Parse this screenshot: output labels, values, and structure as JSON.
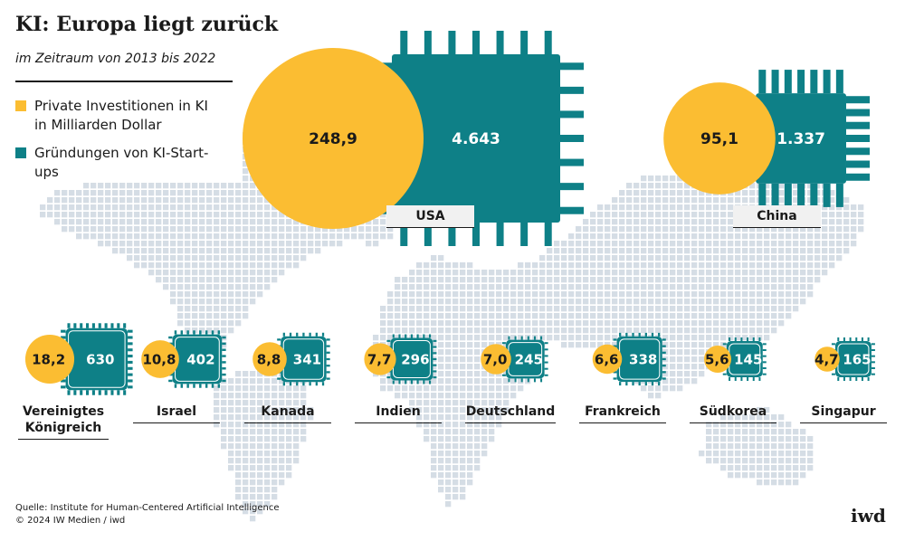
{
  "title": "KI: Europa liegt zurück",
  "subtitle": "im Zeitraum von 2013 bis 2022",
  "legend": [
    {
      "label": "Private Investitionen in KI in Milliarden Dollar",
      "color": "#fbbd32"
    },
    {
      "label": "Gründungen von KI-Start-ups",
      "color": "#0e8087"
    }
  ],
  "source": "Quelle: Institute for Human-Centered Artificial Intelligence",
  "copyright": "© 2024 IW Medien / iwd",
  "logo": "iwd",
  "chart_data": {
    "type": "bubble",
    "title": "KI: Europa liegt zurück",
    "subtitle": "im Zeitraum von 2013 bis 2022",
    "series": [
      {
        "name": "Private Investitionen in KI in Milliarden Dollar",
        "shape": "circle",
        "color": "#fbbd32"
      },
      {
        "name": "Gründungen von KI-Start-ups",
        "shape": "chip",
        "color": "#0e8087"
      }
    ],
    "categories": [
      "USA",
      "China",
      "Vereinigtes Königreich",
      "Israel",
      "Kanada",
      "Indien",
      "Deutschland",
      "Frankreich",
      "Südkorea",
      "Singapur"
    ],
    "investments": [
      248.9,
      95.1,
      18.2,
      10.8,
      8.8,
      7.7,
      7.0,
      6.6,
      5.6,
      4.7
    ],
    "investment_labels": [
      "248,9",
      "95,1",
      "18,2",
      "10,8",
      "8,8",
      "7,7",
      "7,0",
      "6,6",
      "5,6",
      "4,7"
    ],
    "startups": [
      4643,
      1337,
      630,
      402,
      341,
      296,
      245,
      338,
      145,
      165
    ],
    "startup_labels": [
      "4.643",
      "1.337",
      "630",
      "402",
      "341",
      "296",
      "245",
      "338",
      "145",
      "165"
    ]
  }
}
